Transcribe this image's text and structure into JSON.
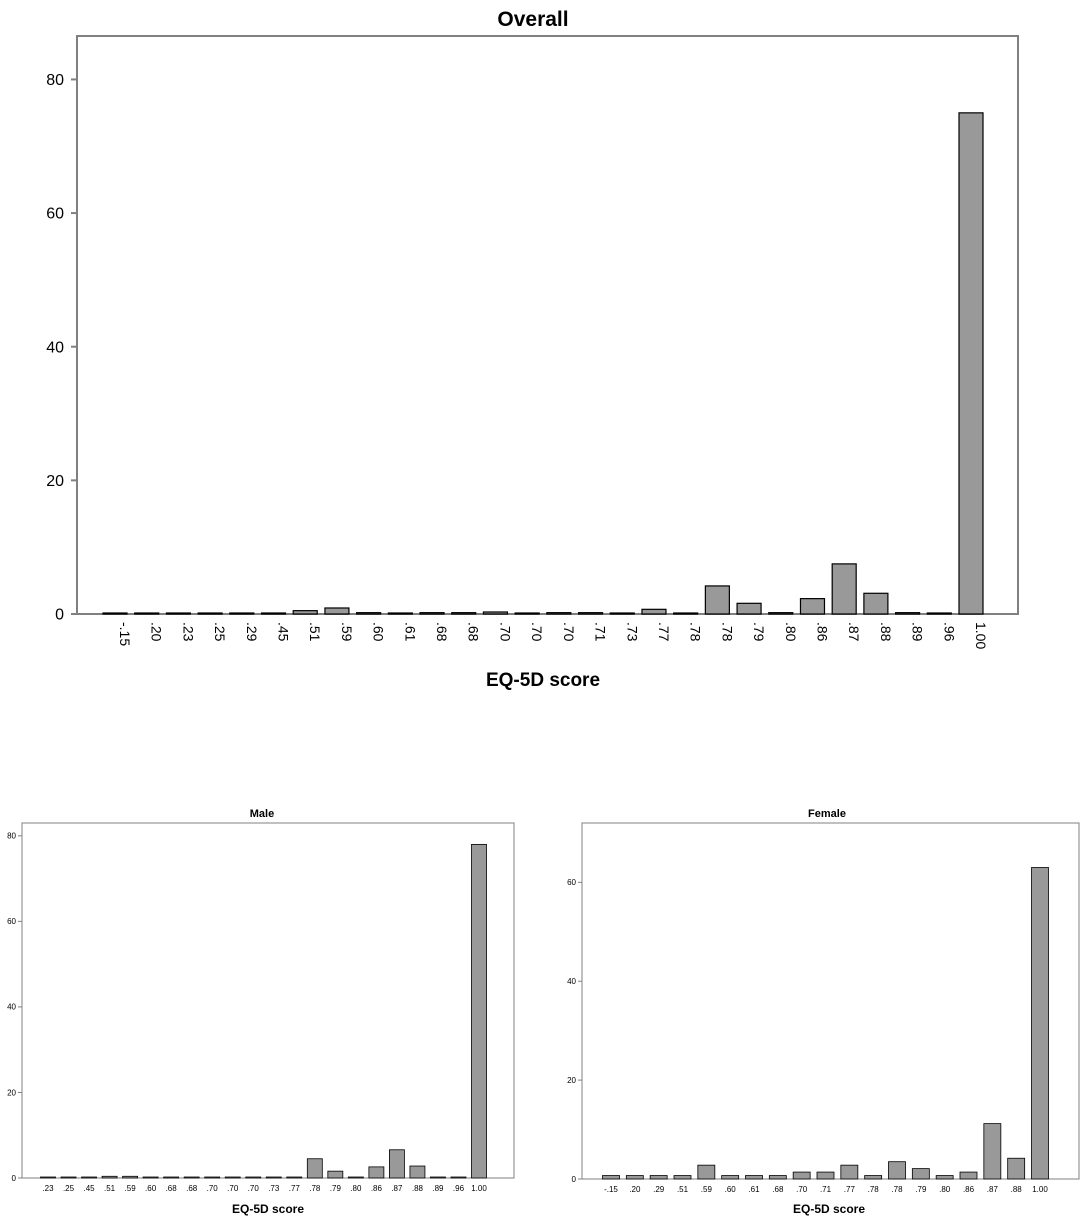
{
  "chart_data": [
    {
      "type": "bar",
      "title": "Overall",
      "xlabel": "EQ-5D score",
      "ylabel": "",
      "ylim": [
        0,
        86.5
      ],
      "yticks": [
        0,
        20,
        40,
        60,
        80
      ],
      "grid": false,
      "bar_color": "#999999",
      "categories": [
        "-.15",
        ".20",
        ".23",
        ".25",
        ".29",
        ".45",
        ".51",
        ".59",
        ".60",
        ".61",
        ".68",
        ".68",
        ".70",
        ".70",
        ".70",
        ".71",
        ".73",
        ".77",
        ".78",
        ".78",
        ".79",
        ".80",
        ".86",
        ".87",
        ".88",
        ".89",
        ".96",
        "1.00"
      ],
      "values": [
        0.1,
        0.1,
        0.1,
        0.1,
        0.1,
        0.1,
        0.5,
        0.9,
        0.2,
        0.1,
        0.2,
        0.2,
        0.3,
        0.1,
        0.2,
        0.2,
        0.1,
        0.7,
        0.1,
        4.2,
        1.6,
        0.2,
        2.3,
        7.5,
        3.1,
        0.2,
        0.1,
        75.0
      ]
    },
    {
      "type": "bar",
      "title": "Male",
      "xlabel": "EQ-5D score",
      "ylabel": "",
      "ylim": [
        0,
        83
      ],
      "yticks": [
        0,
        20,
        40,
        60,
        80
      ],
      "grid": false,
      "bar_color": "#999999",
      "categories": [
        ".23",
        ".25",
        ".45",
        ".51",
        ".59",
        ".60",
        ".68",
        ".68",
        ".70",
        ".70",
        ".70",
        ".73",
        ".77",
        ".78",
        ".79",
        ".80",
        ".86",
        ".87",
        ".88",
        ".89",
        ".96",
        "1.00"
      ],
      "values": [
        0.1,
        0.1,
        0.1,
        0.4,
        0.4,
        0.1,
        0.1,
        0.2,
        0.1,
        0.1,
        0.2,
        0.1,
        0.2,
        4.5,
        1.6,
        0.1,
        2.6,
        6.6,
        2.8,
        0.2,
        0.1,
        78.0
      ]
    },
    {
      "type": "bar",
      "title": "Female",
      "xlabel": "EQ-5D score",
      "ylabel": "",
      "ylim": [
        0,
        72
      ],
      "yticks": [
        0,
        20,
        40,
        60
      ],
      "grid": false,
      "bar_color": "#999999",
      "categories": [
        "-.15",
        ".20",
        ".29",
        ".51",
        ".59",
        ".60",
        ".61",
        ".68",
        ".70",
        ".71",
        ".77",
        ".78",
        ".78",
        ".79",
        ".80",
        ".86",
        ".87",
        ".88",
        "1.00"
      ],
      "values": [
        0.7,
        0.7,
        0.7,
        0.7,
        2.8,
        0.7,
        0.7,
        0.7,
        1.4,
        1.4,
        2.8,
        0.7,
        3.5,
        2.1,
        0.7,
        1.4,
        11.2,
        4.2,
        63.0
      ]
    }
  ]
}
